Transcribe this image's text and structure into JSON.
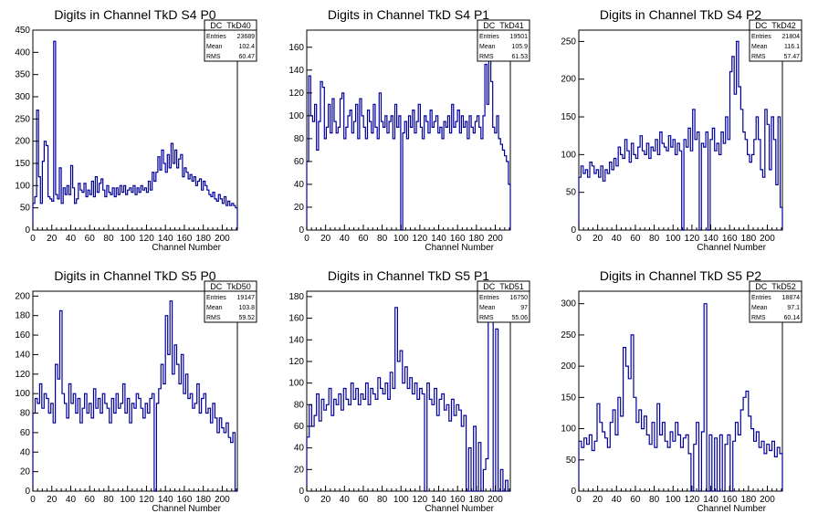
{
  "chart_data": [
    {
      "type": "histogram",
      "title": "Digits in Channel TkD S4 P0",
      "xlabel": "Channel Number",
      "xlim": [
        0,
        216
      ],
      "ylim": [
        0,
        450
      ],
      "xticks": [
        0,
        20,
        40,
        60,
        80,
        100,
        120,
        140,
        160,
        180,
        200
      ],
      "yticks": [
        0,
        50,
        100,
        150,
        200,
        250,
        300,
        350,
        400,
        450
      ],
      "stats": {
        "name": "DC_TkD40",
        "entries": "23689",
        "mean": "102.4",
        "rms": "60.47"
      },
      "values": [
        60,
        75,
        270,
        120,
        60,
        155,
        200,
        190,
        75,
        70,
        65,
        425,
        80,
        70,
        140,
        60,
        95,
        80,
        100,
        80,
        145,
        95,
        60,
        70,
        105,
        90,
        85,
        105,
        75,
        90,
        80,
        110,
        75,
        120,
        85,
        105,
        115,
        90,
        75,
        100,
        85,
        80,
        95,
        75,
        95,
        80,
        100,
        85,
        100,
        80,
        90,
        95,
        85,
        100,
        80,
        95,
        85,
        100,
        90,
        95,
        85,
        110,
        90,
        130,
        110,
        130,
        165,
        135,
        180,
        150,
        130,
        170,
        140,
        195,
        150,
        180,
        140,
        160,
        170,
        120,
        140,
        130,
        115,
        125,
        110,
        120,
        100,
        110,
        115,
        90,
        110,
        100,
        90,
        80,
        75,
        85,
        70,
        65,
        80,
        70,
        60,
        75,
        55,
        65,
        55,
        60,
        55,
        50
      ]
    },
    {
      "type": "histogram",
      "title": "Digits in Channel TkD S4 P1",
      "xlabel": "Channel Number",
      "xlim": [
        0,
        216
      ],
      "ylim": [
        0,
        175
      ],
      "xticks": [
        0,
        20,
        40,
        60,
        80,
        100,
        120,
        140,
        160,
        180,
        200
      ],
      "yticks": [
        0,
        20,
        40,
        60,
        80,
        100,
        120,
        140,
        160
      ],
      "stats": {
        "name": "DC_TkD41",
        "entries": "19501",
        "mean": "105.9",
        "rms": "61.53"
      },
      "values": [
        60,
        135,
        100,
        95,
        110,
        70,
        95,
        130,
        125,
        80,
        90,
        110,
        85,
        115,
        95,
        85,
        90,
        115,
        120,
        80,
        90,
        100,
        105,
        85,
        95,
        110,
        80,
        115,
        100,
        90,
        80,
        105,
        95,
        85,
        110,
        90,
        80,
        120,
        95,
        90,
        100,
        85,
        95,
        100,
        80,
        110,
        90,
        100,
        0,
        85,
        95,
        80,
        100,
        90,
        105,
        85,
        95,
        110,
        90,
        80,
        100,
        95,
        85,
        105,
        90,
        95,
        100,
        85,
        90,
        80,
        95,
        90,
        100,
        85,
        110,
        90,
        95,
        105,
        85,
        100,
        90,
        95,
        80,
        100,
        90,
        85,
        95,
        100,
        90,
        80,
        100,
        145,
        110,
        160,
        130,
        90,
        85,
        100,
        80,
        75,
        70,
        65,
        60,
        40
      ]
    },
    {
      "type": "histogram",
      "title": "Digits in Channel TkD S4 P2",
      "xlabel": "Channel Number",
      "xlim": [
        0,
        216
      ],
      "ylim": [
        0,
        265
      ],
      "xticks": [
        0,
        20,
        40,
        60,
        80,
        100,
        120,
        140,
        160,
        180,
        200
      ],
      "yticks": [
        0,
        50,
        100,
        150,
        200,
        250
      ],
      "stats": {
        "name": "DC_TkD42",
        "entries": "21804",
        "mean": "116.1",
        "rms": "57.47"
      },
      "values": [
        70,
        85,
        75,
        80,
        70,
        90,
        85,
        75,
        80,
        70,
        85,
        65,
        80,
        75,
        90,
        80,
        95,
        85,
        110,
        100,
        95,
        120,
        105,
        90,
        115,
        100,
        95,
        110,
        125,
        105,
        100,
        115,
        95,
        110,
        105,
        120,
        100,
        130,
        115,
        110,
        105,
        125,
        110,
        120,
        100,
        115,
        105,
        0,
        120,
        110,
        135,
        105,
        160,
        120,
        130,
        0,
        115,
        110,
        130,
        0,
        120,
        135,
        105,
        115,
        100,
        130,
        115,
        150,
        120,
        210,
        230,
        180,
        250,
        190,
        160,
        130,
        120,
        100,
        90,
        100,
        120,
        150,
        120,
        80,
        70,
        160,
        140,
        80,
        150,
        120,
        60,
        150,
        30
      ]
    },
    {
      "type": "histogram",
      "title": "Digits in Channel TkD S5 P0",
      "xlabel": "Channel Number",
      "xlim": [
        0,
        216
      ],
      "ylim": [
        0,
        205
      ],
      "xticks": [
        0,
        20,
        40,
        60,
        80,
        100,
        120,
        140,
        160,
        180,
        200
      ],
      "yticks": [
        0,
        20,
        40,
        60,
        80,
        100,
        120,
        140,
        160,
        180,
        200
      ],
      "stats": {
        "name": "DC_TkD50",
        "entries": "19147",
        "mean": "103.8",
        "rms": "59.52"
      },
      "values": [
        80,
        95,
        90,
        110,
        85,
        100,
        95,
        80,
        90,
        70,
        130,
        115,
        185,
        100,
        90,
        75,
        110,
        90,
        100,
        80,
        95,
        70,
        85,
        100,
        80,
        90,
        75,
        105,
        85,
        95,
        80,
        100,
        90,
        85,
        70,
        95,
        80,
        100,
        85,
        90,
        110,
        80,
        95,
        70,
        90,
        85,
        100,
        95,
        85,
        75,
        90,
        80,
        95,
        100,
        0,
        90,
        105,
        130,
        110,
        180,
        140,
        195,
        120,
        150,
        130,
        110,
        140,
        100,
        120,
        95,
        100,
        85,
        90,
        110,
        80,
        95,
        100,
        80,
        85,
        70,
        90,
        75,
        60,
        75,
        65,
        60,
        70,
        55,
        50,
        60,
        0
      ]
    },
    {
      "type": "histogram",
      "title": "Digits in Channel TkD S5 P1",
      "xlabel": "Channel Number",
      "xlim": [
        0,
        216
      ],
      "ylim": [
        0,
        185
      ],
      "xticks": [
        0,
        20,
        40,
        60,
        80,
        100,
        120,
        140,
        160,
        180,
        200
      ],
      "yticks": [
        0,
        20,
        40,
        60,
        80,
        100,
        120,
        140,
        160,
        180
      ],
      "stats": {
        "name": "DC_TkD51",
        "entries": "16750",
        "mean": "97",
        "rms": "55.06"
      },
      "values": [
        50,
        80,
        60,
        70,
        90,
        65,
        85,
        75,
        80,
        95,
        70,
        85,
        80,
        90,
        75,
        95,
        85,
        80,
        100,
        85,
        95,
        80,
        90,
        85,
        100,
        80,
        95,
        90,
        85,
        105,
        95,
        90,
        100,
        85,
        110,
        95,
        170,
        120,
        130,
        100,
        115,
        95,
        105,
        90,
        100,
        85,
        95,
        90,
        0,
        100,
        85,
        80,
        95,
        70,
        85,
        90,
        75,
        80,
        65,
        85,
        70,
        80,
        75,
        60,
        70,
        0,
        40,
        0,
        60,
        0,
        45,
        0,
        20,
        30,
        180,
        160,
        0,
        150,
        0,
        20,
        0,
        10,
        0
      ]
    },
    {
      "type": "histogram",
      "title": "Digits in Channel TkD S5 P2",
      "xlabel": "Channel Number",
      "xlim": [
        0,
        216
      ],
      "ylim": [
        0,
        320
      ],
      "xticks": [
        0,
        20,
        40,
        60,
        80,
        100,
        120,
        140,
        160,
        180,
        200
      ],
      "yticks": [
        0,
        50,
        100,
        150,
        200,
        250,
        300
      ],
      "stats": {
        "name": "DC_TkD52",
        "entries": "18874",
        "mean": "97.1",
        "rms": "60.14"
      },
      "values": [
        80,
        70,
        85,
        75,
        90,
        65,
        80,
        140,
        110,
        95,
        85,
        70,
        110,
        130,
        90,
        150,
        120,
        230,
        200,
        180,
        250,
        150,
        110,
        130,
        100,
        120,
        90,
        75,
        110,
        70,
        140,
        90,
        110,
        80,
        70,
        95,
        80,
        110,
        90,
        70,
        85,
        90,
        60,
        0,
        75,
        110,
        0,
        95,
        300,
        0,
        90,
        0,
        85,
        0,
        90,
        0,
        75,
        90,
        0,
        80,
        110,
        90,
        130,
        150,
        160,
        120,
        100,
        80,
        95,
        70,
        80,
        60,
        75,
        65,
        80,
        55,
        70,
        60
      ]
    }
  ]
}
